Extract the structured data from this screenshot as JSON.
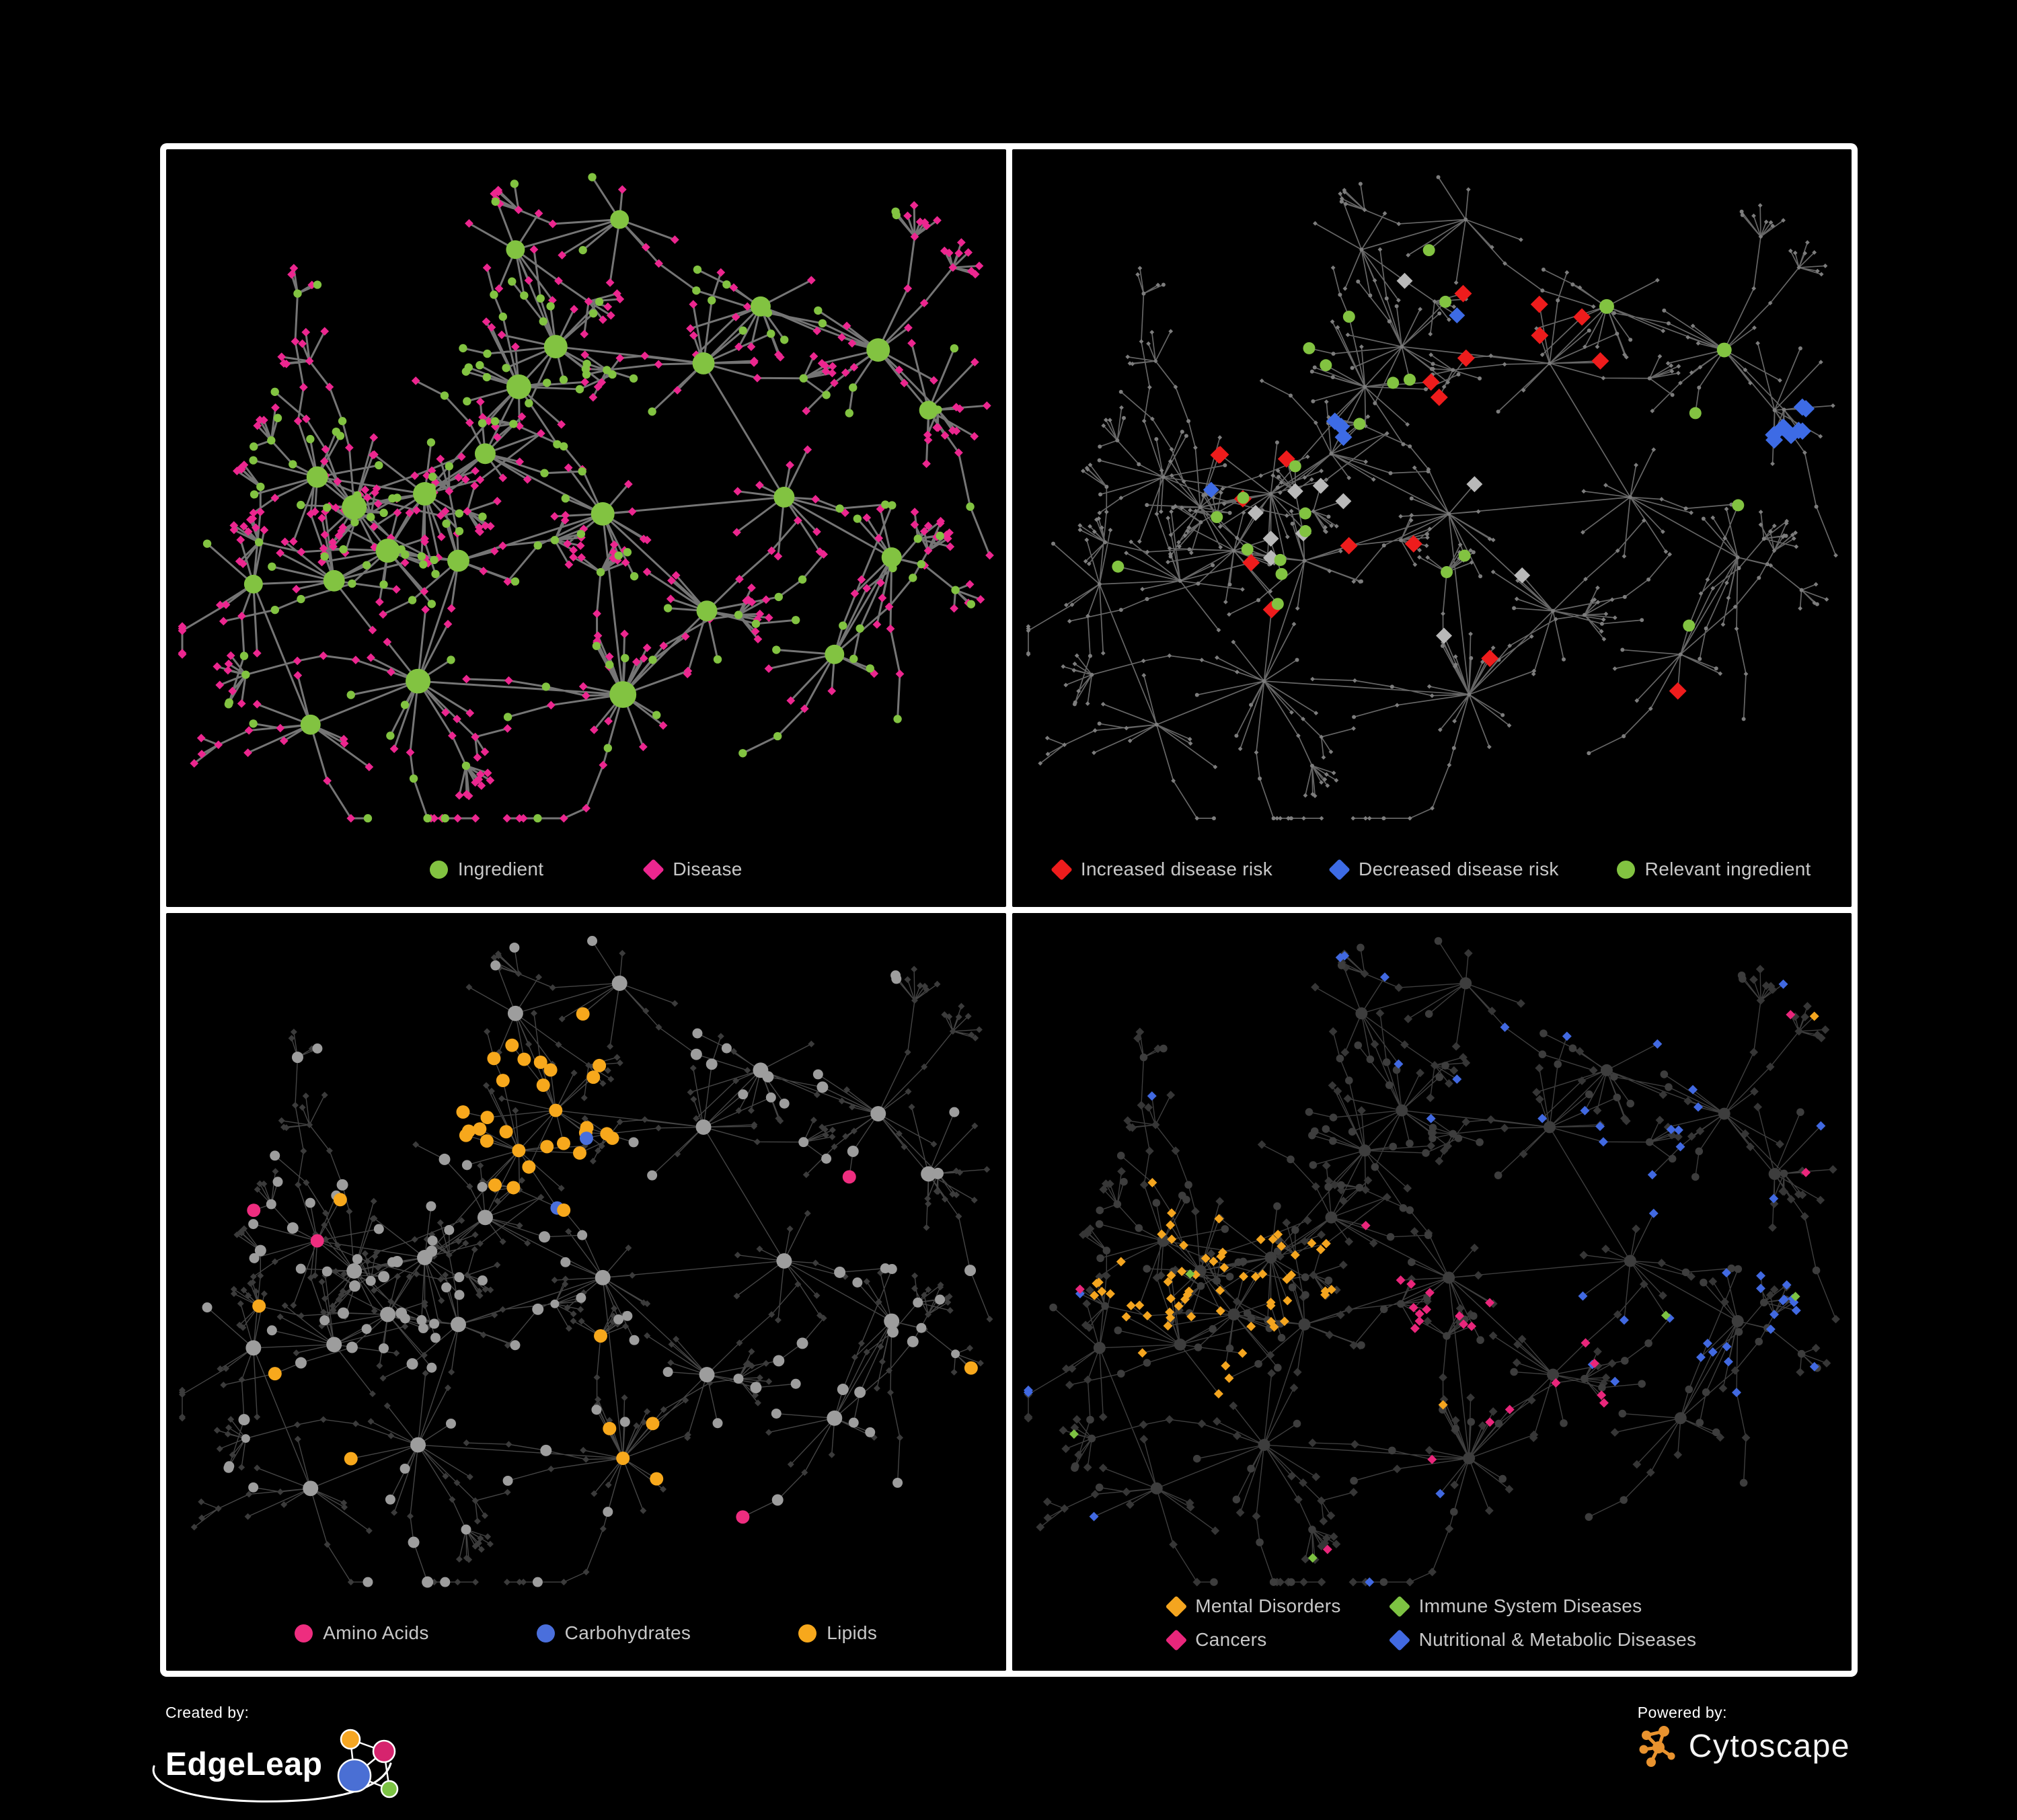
{
  "canvas": {
    "background": "#000000",
    "panel_border": "#FFFFFF",
    "legend_text_color": "#C8C8C8"
  },
  "panels": [
    {
      "name": "ingredient-disease-network",
      "legend": {
        "items": [
          {
            "label": "Ingredient",
            "shape": "circle",
            "color": "#82C341"
          },
          {
            "label": "Disease",
            "shape": "diamond",
            "color": "#EC268F"
          }
        ]
      }
    },
    {
      "name": "disease-risk-network",
      "legend": {
        "items": [
          {
            "label": "Increased disease risk",
            "shape": "diamond",
            "color": "#EE1C1C"
          },
          {
            "label": "Decreased disease risk",
            "shape": "diamond",
            "color": "#3D6BE5"
          },
          {
            "label": "Relevant ingredient",
            "shape": "circle",
            "color": "#82C341"
          }
        ]
      }
    },
    {
      "name": "nutrient-class-network",
      "legend": {
        "items": [
          {
            "label": "Amino Acids",
            "shape": "circle",
            "color": "#EE2D7F"
          },
          {
            "label": "Carbohydrates",
            "shape": "circle",
            "color": "#4A6FDC"
          },
          {
            "label": "Lipids",
            "shape": "circle",
            "color": "#F7A81C"
          }
        ]
      }
    },
    {
      "name": "disease-class-network",
      "legend": {
        "items": [
          {
            "label": "Mental Disorders",
            "shape": "diamond",
            "color": "#F4A51F"
          },
          {
            "label": "Immune System Diseases",
            "shape": "diamond",
            "color": "#7DC242"
          },
          {
            "label": "Cancers",
            "shape": "diamond",
            "color": "#E9267B"
          },
          {
            "label": "Nutritional & Metabolic Diseases",
            "shape": "diamond",
            "color": "#4169E1"
          }
        ]
      }
    }
  ],
  "footer": {
    "created_by": {
      "label": "Created by:",
      "name": "EdgeLeap",
      "logo_node_colors": [
        "#F5A623",
        "#D6246E",
        "#4A6FD4",
        "#7CC344"
      ]
    },
    "powered_by": {
      "label": "Powered by:",
      "name": "Cytoscape",
      "icon_color": "#E9932F"
    }
  }
}
